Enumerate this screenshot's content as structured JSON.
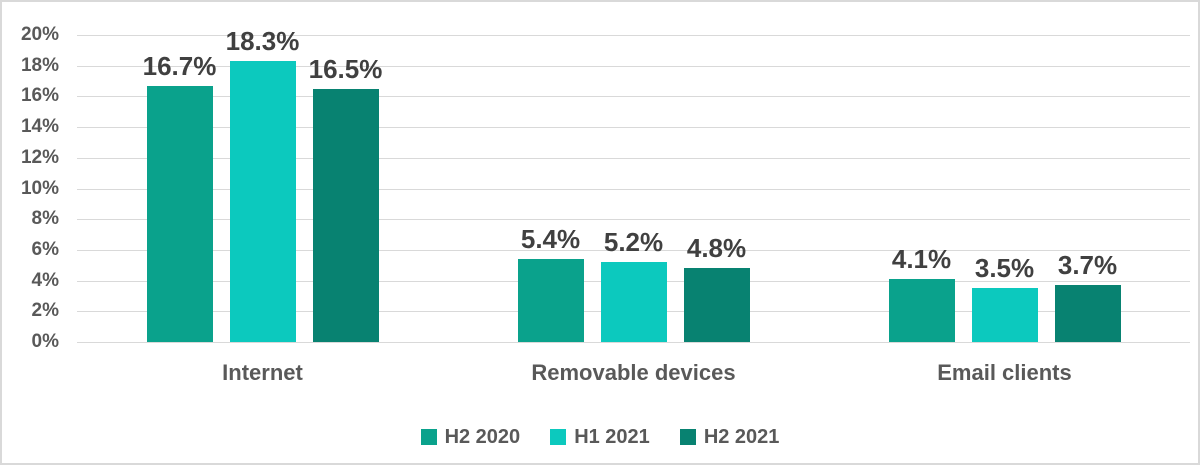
{
  "chart_data": {
    "type": "bar",
    "title": "",
    "categories": [
      "Internet",
      "Removable devices",
      "Email clients"
    ],
    "series": [
      {
        "name": "H2 2020",
        "color": "#0aa28c",
        "values": [
          16.7,
          5.4,
          4.1
        ],
        "labels": [
          "16.7%",
          "5.4%",
          "4.1%"
        ]
      },
      {
        "name": "H1 2021",
        "color": "#0cc9be",
        "values": [
          18.3,
          5.2,
          3.5
        ],
        "labels": [
          "18.3%",
          "5.2%",
          "3.5%"
        ]
      },
      {
        "name": "H2 2021",
        "color": "#088271",
        "values": [
          16.5,
          4.8,
          3.7
        ],
        "labels": [
          "16.5%",
          "4.8%",
          "3.7%"
        ]
      }
    ],
    "y_axis": {
      "min": 0,
      "max": 20,
      "tick_values": [
        20,
        18,
        16,
        14,
        12,
        10,
        8,
        6,
        4,
        2,
        0
      ],
      "tick_labels": [
        "20%",
        "18%",
        "16%",
        "14%",
        "12%",
        "10%",
        "8%",
        "6%",
        "4%",
        "2%",
        "0%"
      ]
    },
    "grid": true,
    "legend_position": "bottom",
    "theme": {
      "background": "#ffffff",
      "border_color": "#d9d9d9",
      "grid_color": "#d9d9d9",
      "axis_label_color": "#595959",
      "category_label_color": "#595959",
      "data_label_color": "#404040"
    }
  }
}
